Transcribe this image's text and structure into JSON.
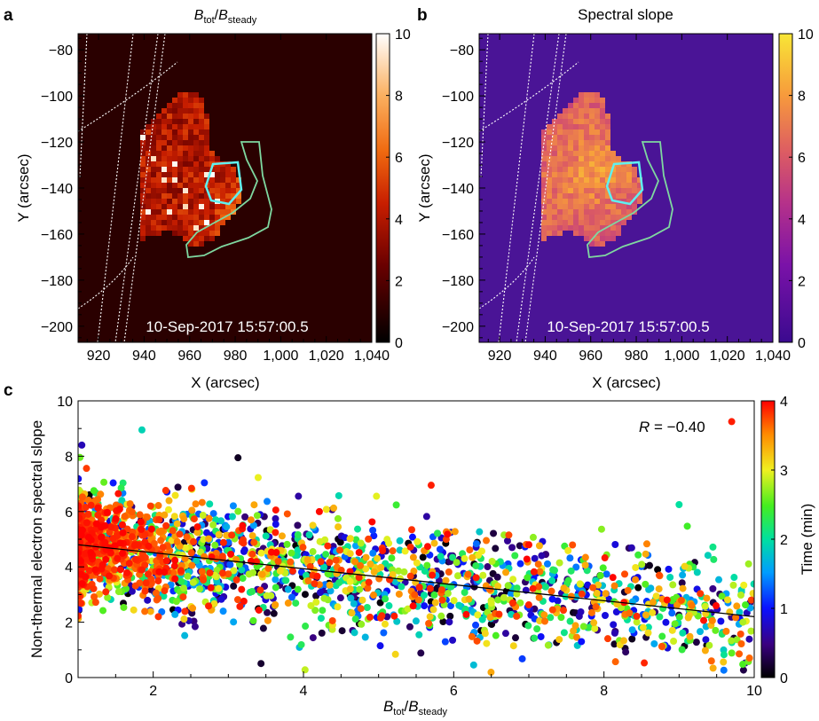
{
  "chart_data": [
    {
      "panel": "a",
      "type": "heatmap",
      "title": "B_tot/B_steady",
      "title_parts": {
        "base": "B",
        "sub1": "tot",
        "slash": "/",
        "base2": "B",
        "sub2": "steady"
      },
      "xlabel": "X (arcsec)",
      "ylabel": "Y (arcsec)",
      "xlim": [
        911,
        1040
      ],
      "ylim": [
        -207,
        -73
      ],
      "xticks": [
        920,
        940,
        960,
        980,
        1000,
        1020,
        1040
      ],
      "xtick_labels": [
        "920",
        "940",
        "960",
        "980",
        "1,000",
        "1,020",
        "1,040"
      ],
      "yticks": [
        -80,
        -100,
        -120,
        -140,
        -160,
        -180,
        -200
      ],
      "ytick_labels": [
        "−80",
        "−100",
        "−120",
        "−140",
        "−160",
        "−180",
        "−200"
      ],
      "colorbar": {
        "range": [
          0,
          10
        ],
        "ticks": [
          0,
          2,
          4,
          6,
          8,
          10
        ],
        "colormap": "hot"
      },
      "timestamp": "10-Sep-2017 15:57:00.5",
      "background_color": "#2a0000"
    },
    {
      "panel": "b",
      "type": "heatmap",
      "title": "Spectral slope",
      "xlabel": "X (arcsec)",
      "ylabel": "Y (arcsec)",
      "xlim": [
        911,
        1040
      ],
      "ylim": [
        -207,
        -73
      ],
      "xticks": [
        920,
        940,
        960,
        980,
        1000,
        1020,
        1040
      ],
      "xtick_labels": [
        "920",
        "940",
        "960",
        "980",
        "1,000",
        "1,020",
        "1,040"
      ],
      "yticks": [
        -80,
        -100,
        -120,
        -140,
        -160,
        -180,
        -200
      ],
      "ytick_labels": [
        "−80",
        "−100",
        "−120",
        "−140",
        "−160",
        "−180",
        "−200"
      ],
      "colorbar": {
        "range": [
          0,
          10
        ],
        "ticks": [
          0,
          2,
          4,
          6,
          8,
          10
        ],
        "colormap": "plasma"
      },
      "timestamp": "10-Sep-2017 15:57:00.5",
      "background_color": "#4a1496"
    },
    {
      "panel": "c",
      "type": "scatter",
      "xlabel": "B_tot/B_steady",
      "xlabel_parts": {
        "base": "B",
        "sub1": "tot",
        "slash": "/",
        "base2": "B",
        "sub2": "steady"
      },
      "ylabel": "Non-thermal electron spectral slope",
      "xlim": [
        1,
        10
      ],
      "ylim": [
        0,
        10
      ],
      "xticks": [
        2,
        4,
        6,
        8,
        10
      ],
      "yticks": [
        0,
        2,
        4,
        6,
        8,
        10
      ],
      "annotation": {
        "label": "R",
        "value": " = −0.40"
      },
      "fit_line": {
        "x": [
          1,
          10
        ],
        "y": [
          4.8,
          2.2
        ]
      },
      "colorbar": {
        "label": "Time (min)",
        "range": [
          0,
          4
        ],
        "ticks": [
          0,
          1,
          2,
          3,
          4
        ],
        "colormap": "rainbow"
      },
      "series_description": "approx. 2,000 points colored by time; dense cloud near x=1-3, y=3-6",
      "sample_points": [
        {
          "x": 9.7,
          "y": 9.25,
          "t": 3.9
        },
        {
          "x": 5.7,
          "y": 6.95,
          "t": 3.9
        },
        {
          "x": 1.85,
          "y": 8.95,
          "t": 1.9
        },
        {
          "x": 1.05,
          "y": 8.4,
          "t": 0.7
        },
        {
          "x": 7.0,
          "y": 4.8,
          "t": 3.95
        },
        {
          "x": 9.0,
          "y": 6.25,
          "t": 2.0
        },
        {
          "x": 9.85,
          "y": 2.0,
          "t": 2.8
        },
        {
          "x": 7.7,
          "y": 1.3,
          "t": 1.0
        }
      ]
    }
  ]
}
